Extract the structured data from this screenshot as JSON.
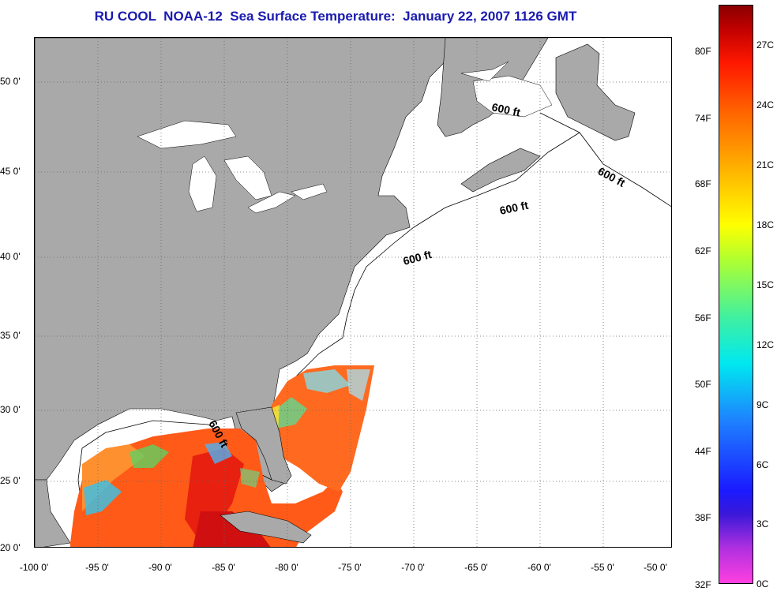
{
  "title": "RU COOL  NOAA-12  Sea Surface Temperature:  January 22, 2007 1126 GMT",
  "map": {
    "lon_ticks": [
      "-100 0'",
      "-95 0'",
      "-90 0'",
      "-85 0'",
      "-80 0'",
      "-75 0'",
      "-70 0'",
      "-65 0'",
      "-60 0'",
      "-55 0'",
      "-50 0'"
    ],
    "lat_ticks": [
      "50 0'",
      "45 0'",
      "40 0'",
      "35 0'",
      "30 0'",
      "25 0'",
      "20 0'"
    ],
    "contour_labels": [
      "600 ft",
      "600 ft",
      "600 ft",
      "600 ft",
      "600 ft"
    ],
    "land_color": "#a9a9a9",
    "water_color": "#ffffff"
  },
  "colorbar": {
    "fahrenheit": [
      "80F",
      "74F",
      "68F",
      "62F",
      "56F",
      "50F",
      "44F",
      "38F",
      "32F"
    ],
    "celsius": [
      "27C",
      "24C",
      "21C",
      "18C",
      "15C",
      "12C",
      "9C",
      "6C",
      "3C",
      "0C"
    ]
  }
}
